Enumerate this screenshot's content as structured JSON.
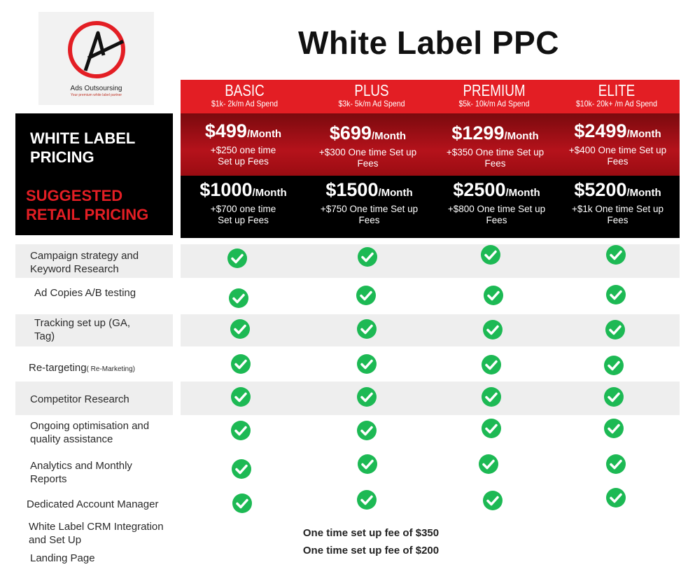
{
  "logo": {
    "name": "Ads Outsoursing",
    "tagline": "Your premium white label partner"
  },
  "title": "White Label PPC",
  "plans": [
    {
      "name": "BASIC",
      "spend": "$1k- 2k/m Ad Spend"
    },
    {
      "name": "PLUS",
      "spend": "$3k- 5k/m Ad Spend"
    },
    {
      "name": "PREMIUM",
      "spend": "$5k- 10k/m Ad Spend"
    },
    {
      "name": "ELITE",
      "spend": "$10k- 20k+ /m Ad Spend"
    }
  ],
  "white_label": {
    "label": "WHITE LABEL PRICING",
    "prices": [
      {
        "amount": "$499",
        "unit": "/Month",
        "note": "+$250 one time Set up Fees"
      },
      {
        "amount": "$699",
        "unit": "/Month",
        "note": "+$300 One time Set up Fees"
      },
      {
        "amount": "$1299",
        "unit": "/Month",
        "note": "+$350 One time Set up Fees"
      },
      {
        "amount": "$2499",
        "unit": "/Month",
        "note": "+$400 One time Set up Fees"
      }
    ]
  },
  "retail": {
    "label": "SUGGESTED RETAIL PRICING",
    "prices": [
      {
        "amount": "$1000",
        "unit": "/Month",
        "note": "+$700 one time Set up Fees"
      },
      {
        "amount": "$1500",
        "unit": "/Month",
        "note": "+$750 One time Set up Fees"
      },
      {
        "amount": "$2500",
        "unit": "/Month",
        "note": "+$800 One time Set up Fees"
      },
      {
        "amount": "$5200",
        "unit": "/Month",
        "note": "+$1k One time Set up Fees"
      }
    ]
  },
  "features": [
    {
      "label": "Campaign strategy and Keyword Research",
      "small": ""
    },
    {
      "label": "Ad Copies A/B testing",
      "small": ""
    },
    {
      "label": "Tracking set up (GA, Tag)",
      "small": ""
    },
    {
      "label": "Re-targeting",
      "small": "( Re-Marketing)"
    },
    {
      "label": "Competitor Research",
      "small": ""
    },
    {
      "label": "Ongoing optimisation and quality assistance",
      "small": ""
    },
    {
      "label": "Analytics and Monthly Reports",
      "small": ""
    },
    {
      "label": "Dedicated Account Manager",
      "small": ""
    },
    {
      "label": "White Label CRM Integration and Set Up",
      "small": ""
    },
    {
      "label": "Landing Page",
      "small": ""
    }
  ],
  "setup_notes": [
    "One time set up fee of $350",
    "One time set up fee of $200"
  ],
  "colors": {
    "red": "#e31e24",
    "check": "#1db954"
  },
  "icons": {
    "included": "check-circle-icon"
  }
}
